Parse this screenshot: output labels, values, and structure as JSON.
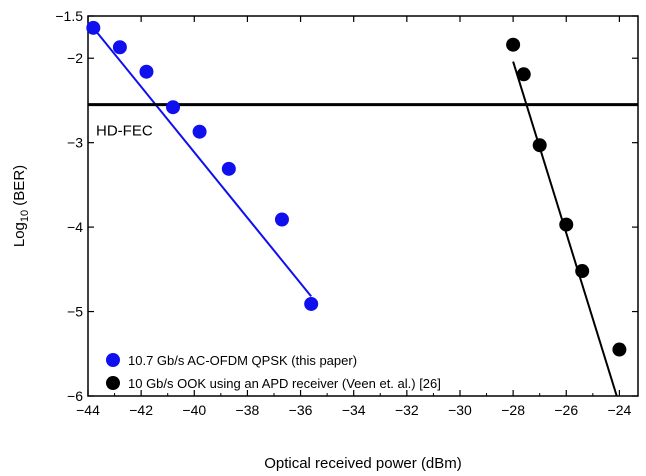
{
  "chart_data": {
    "type": "scatter",
    "xlabel": "Optical received power (dBm)",
    "ylabel_main": "Log",
    "ylabel_sub": "10",
    "ylabel_rest": " (BER)",
    "xlim": [
      -44,
      -23.3
    ],
    "ylim": [
      -6,
      -1.5
    ],
    "xticks": [
      -44,
      -42,
      -40,
      -38,
      -36,
      -34,
      -32,
      -30,
      -28,
      -26,
      -24
    ],
    "xtick_labels": [
      "−44",
      "−42",
      "−40",
      "−38",
      "−36",
      "−34",
      "−32",
      "−30",
      "−28",
      "−26",
      "−24"
    ],
    "yticks": [
      -1.5,
      -2,
      -3,
      -4,
      -5,
      -6
    ],
    "ytick_labels": [
      "−1.5",
      "−2",
      "−3",
      "−4",
      "−5",
      "−6"
    ],
    "grid": false,
    "legend_position": "bottom-left",
    "threshold": {
      "label": "HD-FEC",
      "y": -2.55
    },
    "series": [
      {
        "name": "10.7 Gb/s AC-OFDM QPSK (this paper)",
        "color": "#1010ee",
        "points": [
          [
            -43.8,
            -1.64
          ],
          [
            -42.8,
            -1.87
          ],
          [
            -41.8,
            -2.16
          ],
          [
            -40.8,
            -2.58
          ],
          [
            -39.8,
            -2.87
          ],
          [
            -38.7,
            -3.31
          ],
          [
            -36.7,
            -3.91
          ],
          [
            -35.6,
            -4.91
          ]
        ],
        "fit": [
          [
            -43.8,
            -1.64
          ],
          [
            -35.6,
            -4.82
          ]
        ]
      },
      {
        "name": "10 Gb/s OOK using an APD receiver (Veen et. al.) [26]",
        "color": "#000000",
        "points": [
          [
            -28.0,
            -1.84
          ],
          [
            -27.6,
            -2.19
          ],
          [
            -27.0,
            -3.03
          ],
          [
            -26.0,
            -3.97
          ],
          [
            -25.4,
            -4.52
          ],
          [
            -24.0,
            -5.45
          ]
        ],
        "fit": [
          [
            -28.0,
            -2.04
          ],
          [
            -24.1,
            -6.0
          ]
        ]
      }
    ]
  }
}
